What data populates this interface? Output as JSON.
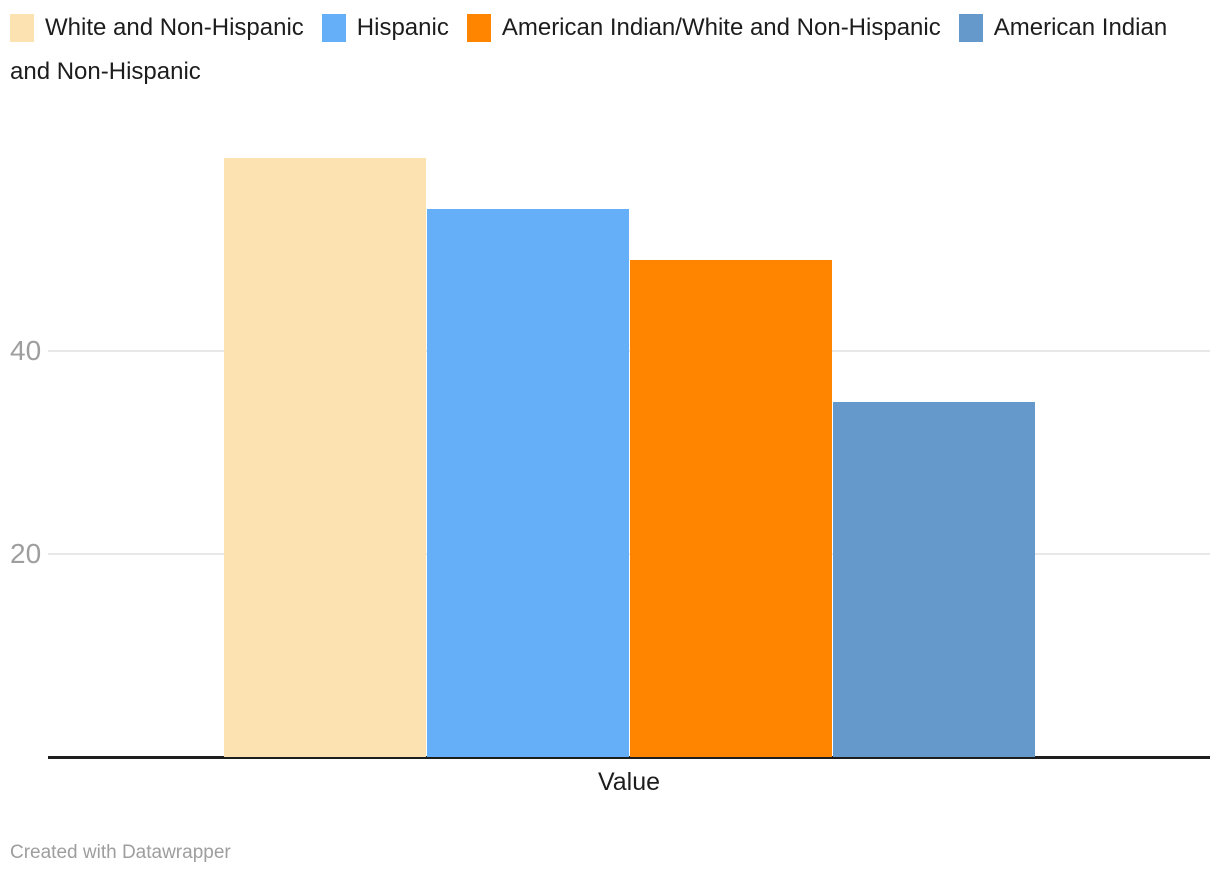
{
  "chart_data": {
    "type": "bar",
    "categories": [
      "Value"
    ],
    "series": [
      {
        "name": "White and Non-Hispanic",
        "color": "#FCE1B1",
        "values": [
          59
        ]
      },
      {
        "name": "Hispanic",
        "color": "#64AFF7",
        "values": [
          54
        ]
      },
      {
        "name": "American Indian/White and Non-Hispanic",
        "color": "#FF8500",
        "values": [
          49
        ]
      },
      {
        "name": "American Indian and Non-Hispanic",
        "color": "#6598CB",
        "values": [
          35
        ]
      }
    ],
    "title": "",
    "xlabel": "Value",
    "ylabel": "",
    "yticks": [
      20,
      40
    ],
    "ylim": [
      0,
      60
    ],
    "grid": true,
    "legend_position": "top",
    "axis_line_color": "#1d1d1d",
    "gridline_color": "#e8e8e8",
    "tick_label_color": "#9e9e9e",
    "legend_text_color": "#1d1d1d"
  },
  "footer": {
    "credit": "Created with Datawrapper"
  }
}
